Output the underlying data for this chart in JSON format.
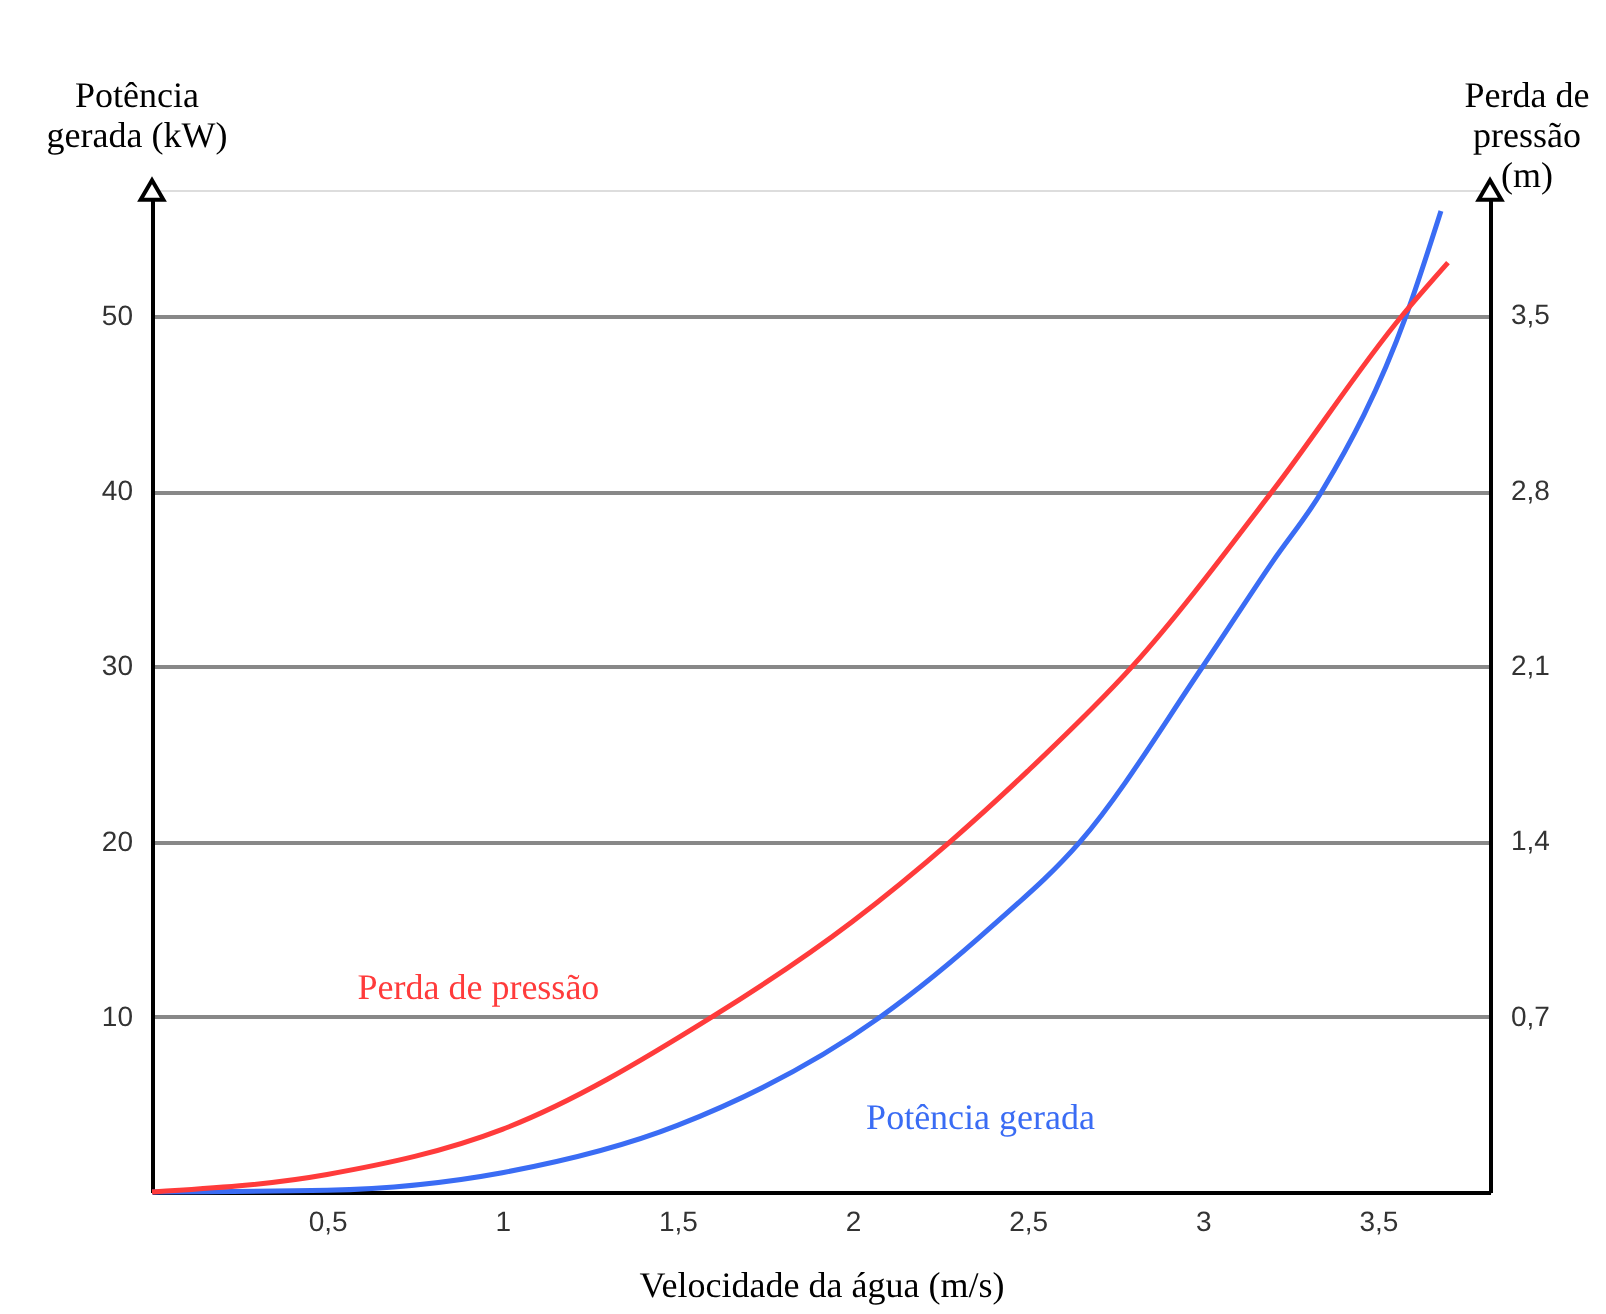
{
  "chart_data": {
    "type": "line",
    "xlabel": "Velocidade da água (m/s)",
    "ylabel": "Potência gerada (kW)",
    "y2label": "Perda de pressão (m)",
    "xlim": [
      0,
      3.82
    ],
    "xticks": [
      {
        "value": 0.5,
        "label": "0,5"
      },
      1,
      {
        "value": 1.5,
        "label": "1,5"
      },
      2,
      {
        "value": 2.5,
        "label": "2,5"
      },
      3,
      {
        "value": 3.5,
        "label": "3,5"
      }
    ],
    "ylim": [
      0,
      57.2
    ],
    "yticks": [
      10,
      20,
      30,
      40,
      50
    ],
    "y2lim": [
      0,
      4.0
    ],
    "y2ticks": [
      {
        "value": 0.7,
        "label": "0,7"
      },
      {
        "value": 1.4,
        "label": "1,4"
      },
      {
        "value": 2.1,
        "label": "2,1"
      },
      {
        "value": 2.8,
        "label": "2,8"
      },
      {
        "value": 3.5,
        "label": "3,5"
      }
    ],
    "grid": "y",
    "legend": false,
    "line_style": "solid",
    "marker": "none",
    "series": [
      {
        "name": "Potência gerada",
        "color": "#3a6cf4",
        "x": [
          0,
          0.5,
          1,
          1.5,
          2.08,
          2.4,
          2.65,
          3,
          3.2,
          3.34,
          3.58,
          3.68
        ],
        "values": [
          0,
          0.1,
          1.1,
          3.8,
          10,
          15.2,
          20,
          30,
          36,
          40,
          50,
          56
        ]
      },
      {
        "name": "Perda de pressão",
        "color": "#ff3b3b",
        "axis": "y2",
        "x": [
          0,
          0.5,
          1,
          1.6,
          2,
          2.28,
          2.5,
          2.8,
          3.2,
          3.57,
          3.7
        ],
        "values": [
          0,
          0.07,
          0.25,
          0.7,
          1.08,
          1.4,
          1.68,
          2.1,
          2.8,
          3.5,
          3.71
        ]
      }
    ]
  }
}
